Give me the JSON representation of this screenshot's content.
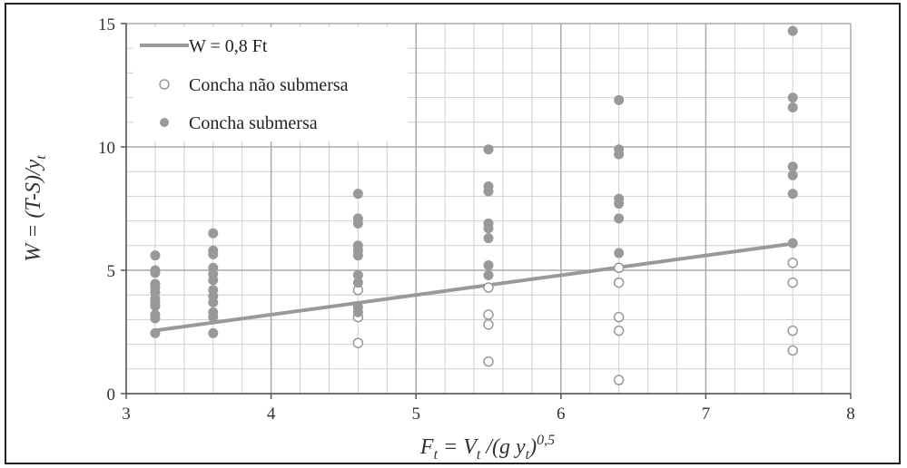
{
  "chart_data": {
    "type": "scatter",
    "title": "",
    "xlim": [
      3,
      8
    ],
    "ylim": [
      0,
      15
    ],
    "x_ticks": [
      "3",
      "4",
      "5",
      "6",
      "7",
      "8"
    ],
    "y_ticks": [
      "0",
      "5",
      "10",
      "15"
    ],
    "grid": true,
    "legend_position": "top-left",
    "colors": {
      "series": "#999999",
      "axis": "#555555",
      "grid_major": "#aaaaaa",
      "grid_minor": "#cfcfcf"
    },
    "xlabel": {
      "main": "F",
      "sub1": "t",
      "eq": " = V",
      "sub2": "t",
      "div": " /(g y",
      "sub3": "t",
      "close": ")",
      "sup": "0,5"
    },
    "ylabel": {
      "main": "W = (T-S)/y",
      "sub": "t"
    },
    "series": [
      {
        "name": "W = 0,8 Ft",
        "kind": "line",
        "points": [
          [
            3.2,
            2.56
          ],
          [
            7.6,
            6.08
          ]
        ]
      },
      {
        "name": "Concha não submersa",
        "kind": "open-circle",
        "points": [
          [
            4.6,
            4.2
          ],
          [
            4.6,
            3.1
          ],
          [
            4.6,
            2.05
          ],
          [
            5.5,
            4.3
          ],
          [
            5.5,
            3.2
          ],
          [
            5.5,
            2.8
          ],
          [
            5.5,
            1.3
          ],
          [
            6.4,
            5.1
          ],
          [
            6.4,
            4.5
          ],
          [
            6.4,
            3.1
          ],
          [
            6.4,
            2.55
          ],
          [
            6.4,
            0.55
          ],
          [
            7.6,
            5.3
          ],
          [
            7.6,
            4.5
          ],
          [
            7.6,
            2.55
          ],
          [
            7.6,
            1.75
          ]
        ]
      },
      {
        "name": "Concha submersa",
        "kind": "filled-circle",
        "points": [
          [
            3.2,
            5.6
          ],
          [
            3.2,
            5.0
          ],
          [
            3.2,
            4.9
          ],
          [
            3.2,
            4.45
          ],
          [
            3.2,
            4.3
          ],
          [
            3.2,
            4.1
          ],
          [
            3.2,
            3.85
          ],
          [
            3.2,
            3.7
          ],
          [
            3.2,
            3.55
          ],
          [
            3.2,
            3.2
          ],
          [
            3.2,
            3.05
          ],
          [
            3.2,
            2.45
          ],
          [
            3.6,
            6.5
          ],
          [
            3.6,
            5.8
          ],
          [
            3.6,
            5.65
          ],
          [
            3.6,
            5.1
          ],
          [
            3.6,
            4.85
          ],
          [
            3.6,
            4.6
          ],
          [
            3.6,
            4.2
          ],
          [
            3.6,
            3.95
          ],
          [
            3.6,
            3.7
          ],
          [
            3.6,
            3.3
          ],
          [
            3.6,
            3.1
          ],
          [
            3.6,
            2.45
          ],
          [
            4.6,
            8.1
          ],
          [
            4.6,
            7.1
          ],
          [
            4.6,
            6.9
          ],
          [
            4.6,
            6.0
          ],
          [
            4.6,
            5.8
          ],
          [
            4.6,
            5.6
          ],
          [
            4.6,
            4.8
          ],
          [
            4.6,
            4.5
          ],
          [
            4.6,
            3.5
          ],
          [
            4.6,
            3.3
          ],
          [
            5.5,
            9.9
          ],
          [
            5.5,
            8.4
          ],
          [
            5.5,
            8.2
          ],
          [
            5.5,
            6.9
          ],
          [
            5.5,
            6.7
          ],
          [
            5.5,
            6.3
          ],
          [
            5.5,
            5.2
          ],
          [
            5.5,
            4.8
          ],
          [
            6.4,
            11.9
          ],
          [
            6.4,
            9.9
          ],
          [
            6.4,
            9.7
          ],
          [
            6.4,
            7.9
          ],
          [
            6.4,
            7.7
          ],
          [
            6.4,
            7.1
          ],
          [
            6.4,
            5.7
          ],
          [
            7.6,
            14.7
          ],
          [
            7.6,
            12.0
          ],
          [
            7.6,
            11.6
          ],
          [
            7.6,
            9.2
          ],
          [
            7.6,
            8.85
          ],
          [
            7.6,
            8.1
          ],
          [
            7.6,
            6.1
          ]
        ]
      }
    ]
  }
}
